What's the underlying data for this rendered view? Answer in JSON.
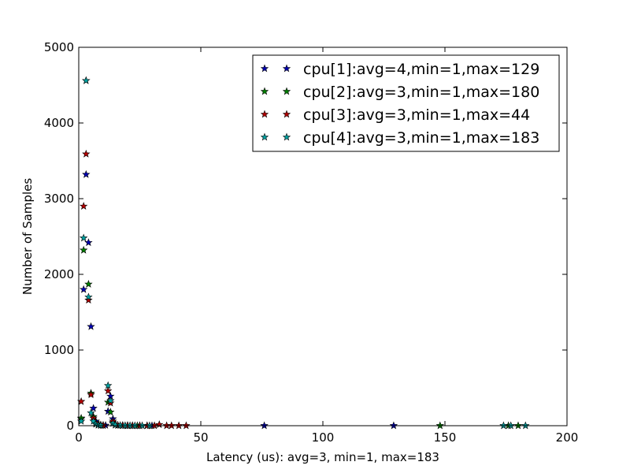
{
  "chart_data": {
    "type": "scatter",
    "title": "",
    "xlabel": "Latency (us): avg=3, min=1, max=183",
    "ylabel": "Number of Samples",
    "xlim": [
      0,
      200
    ],
    "ylim": [
      0,
      5000
    ],
    "x_ticks": [
      0,
      50,
      100,
      150,
      200
    ],
    "y_ticks": [
      0,
      1000,
      2000,
      3000,
      4000,
      5000
    ],
    "grid": false,
    "legend_position": "top-right",
    "marker": "star",
    "series": [
      {
        "name": "cpu[1]:avg=4,min=1,max=129",
        "color": "#0000b3",
        "points": [
          [
            1,
            90
          ],
          [
            2,
            1800
          ],
          [
            3,
            3320
          ],
          [
            4,
            2420
          ],
          [
            5,
            1310
          ],
          [
            6,
            230
          ],
          [
            7,
            60
          ],
          [
            8,
            20
          ],
          [
            9,
            10
          ],
          [
            10,
            5
          ],
          [
            11,
            5
          ],
          [
            12,
            190
          ],
          [
            13,
            390
          ],
          [
            14,
            90
          ],
          [
            15,
            15
          ],
          [
            16,
            5
          ],
          [
            18,
            3
          ],
          [
            20,
            2
          ],
          [
            22,
            1
          ],
          [
            25,
            1
          ],
          [
            30,
            1
          ],
          [
            76,
            1
          ],
          [
            129,
            1
          ]
        ]
      },
      {
        "name": "cpu[2]:avg=3,min=1,max=180",
        "color": "#007f00",
        "points": [
          [
            1,
            100
          ],
          [
            2,
            2320
          ],
          [
            3,
            4560
          ],
          [
            4,
            1870
          ],
          [
            5,
            430
          ],
          [
            6,
            120
          ],
          [
            7,
            30
          ],
          [
            8,
            10
          ],
          [
            9,
            5
          ],
          [
            10,
            3
          ],
          [
            12,
            310
          ],
          [
            13,
            180
          ],
          [
            14,
            40
          ],
          [
            15,
            10
          ],
          [
            16,
            5
          ],
          [
            18,
            3
          ],
          [
            20,
            2
          ],
          [
            24,
            1
          ],
          [
            28,
            1
          ],
          [
            148,
            1
          ],
          [
            176,
            1
          ],
          [
            180,
            1
          ]
        ]
      },
      {
        "name": "cpu[3]:avg=3,min=1,max=44",
        "color": "#b30000",
        "points": [
          [
            1,
            320
          ],
          [
            2,
            2900
          ],
          [
            3,
            3590
          ],
          [
            4,
            1660
          ],
          [
            5,
            410
          ],
          [
            6,
            100
          ],
          [
            7,
            40
          ],
          [
            8,
            15
          ],
          [
            9,
            8
          ],
          [
            10,
            4
          ],
          [
            12,
            460
          ],
          [
            13,
            300
          ],
          [
            14,
            60
          ],
          [
            15,
            15
          ],
          [
            16,
            6
          ],
          [
            18,
            3
          ],
          [
            20,
            2
          ],
          [
            22,
            2
          ],
          [
            25,
            1
          ],
          [
            28,
            1
          ],
          [
            31,
            1
          ],
          [
            33,
            15
          ],
          [
            36,
            1
          ],
          [
            38,
            1
          ],
          [
            41,
            1
          ],
          [
            44,
            1
          ]
        ]
      },
      {
        "name": "cpu[4]:avg=3,min=1,max=183",
        "color": "#00a0a0",
        "points": [
          [
            1,
            60
          ],
          [
            2,
            2480
          ],
          [
            3,
            4560
          ],
          [
            4,
            1700
          ],
          [
            5,
            170
          ],
          [
            6,
            60
          ],
          [
            7,
            20
          ],
          [
            8,
            8
          ],
          [
            9,
            4
          ],
          [
            12,
            530
          ],
          [
            13,
            330
          ],
          [
            14,
            30
          ],
          [
            15,
            10
          ],
          [
            17,
            4
          ],
          [
            19,
            2
          ],
          [
            21,
            2
          ],
          [
            23,
            1
          ],
          [
            26,
            1
          ],
          [
            29,
            1
          ],
          [
            174,
            1
          ],
          [
            177,
            1
          ],
          [
            183,
            1
          ]
        ]
      }
    ]
  }
}
